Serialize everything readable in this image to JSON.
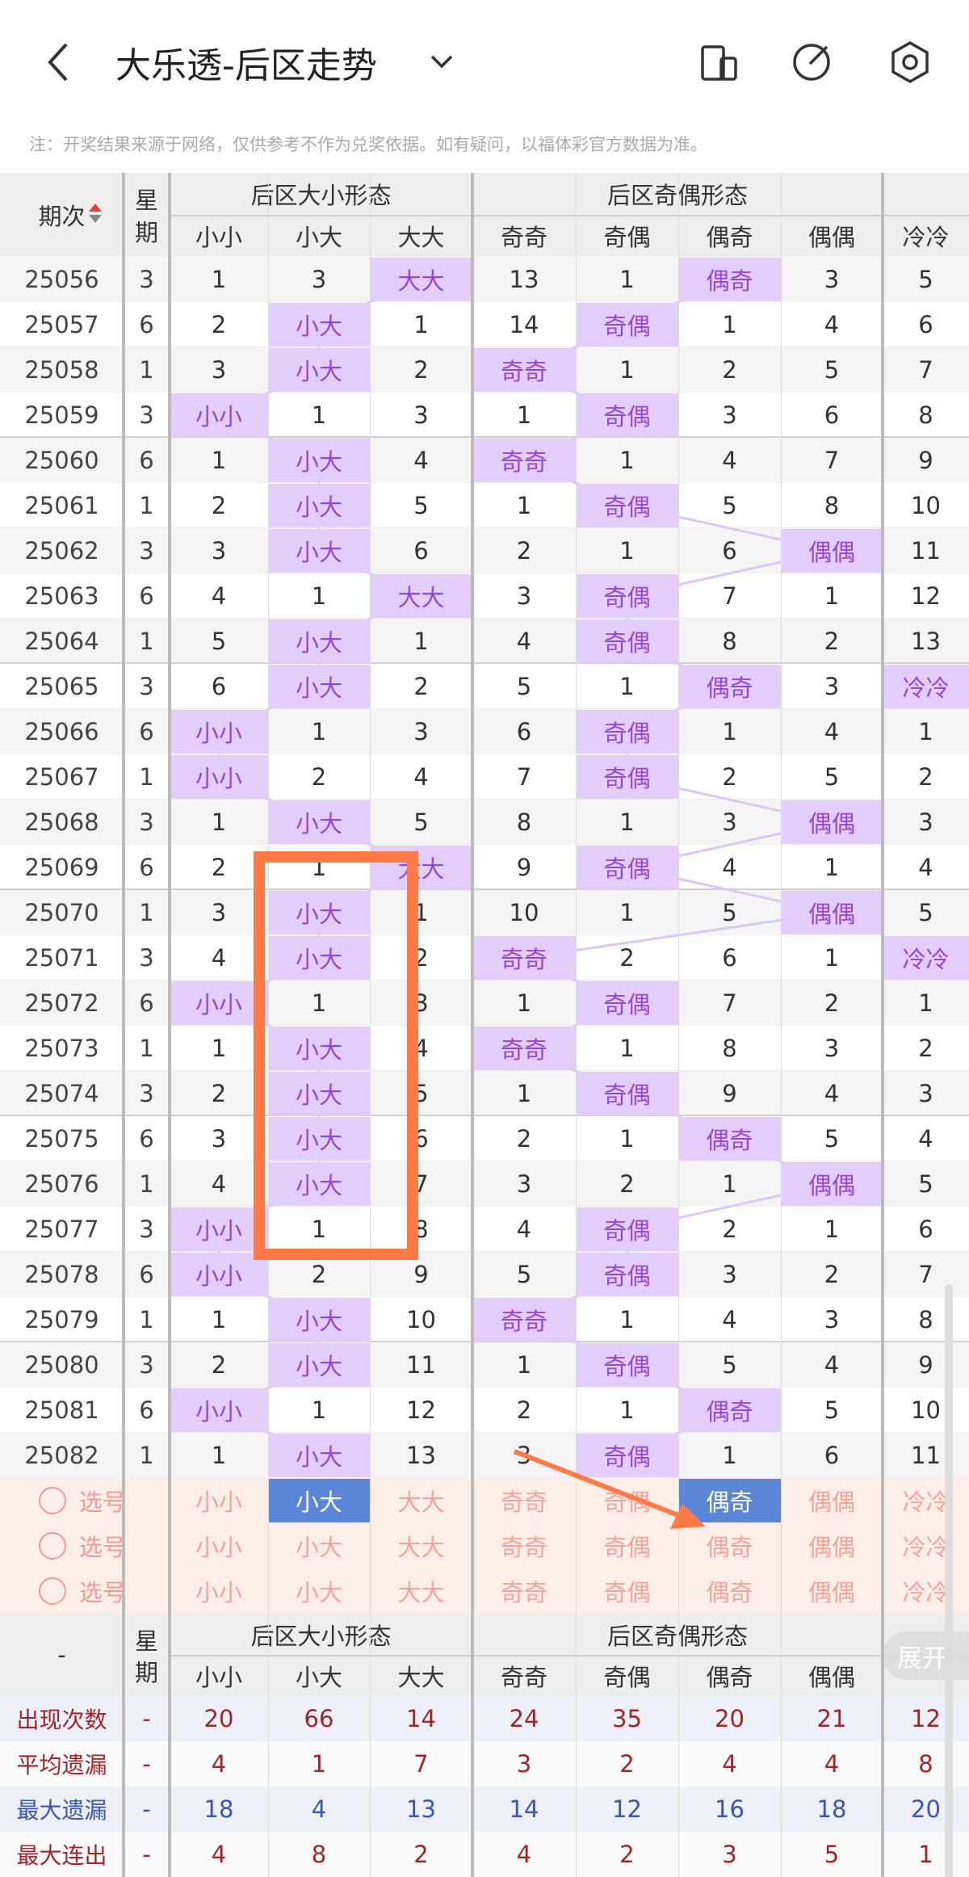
{
  "header": {
    "title": "大乐透-后区走势",
    "note": "注：开奖结果来源于网络，仅供参考不作为兑奖依据。如有疑问，以福体彩官方数据为准。"
  },
  "table": {
    "columns": {
      "period": "期次",
      "weekday": [
        "星",
        "期"
      ],
      "groups": [
        {
          "title": "后区大小形态",
          "cols": [
            "小小",
            "小大",
            "大大"
          ]
        },
        {
          "title": "后区奇偶形态",
          "cols": [
            "奇奇",
            "奇偶",
            "偶奇",
            "偶偶"
          ]
        },
        {
          "cols": [
            "冷冷"
          ]
        }
      ]
    },
    "rows": [
      {
        "period": "25056",
        "weekday": 3,
        "cells": [
          1,
          3,
          "大大",
          13,
          1,
          "偶奇",
          3,
          5
        ]
      },
      {
        "period": "25057",
        "weekday": 6,
        "cells": [
          2,
          "小大",
          1,
          14,
          "奇偶",
          1,
          4,
          6
        ]
      },
      {
        "period": "25058",
        "weekday": 1,
        "cells": [
          3,
          "小大",
          2,
          "奇奇",
          1,
          2,
          5,
          7
        ]
      },
      {
        "period": "25059",
        "weekday": 3,
        "cells": [
          "小小",
          1,
          3,
          1,
          "奇偶",
          3,
          6,
          8
        ]
      },
      {
        "period": "25060",
        "weekday": 6,
        "cells": [
          1,
          "小大",
          4,
          "奇奇",
          1,
          4,
          7,
          9
        ]
      },
      {
        "period": "25061",
        "weekday": 1,
        "cells": [
          2,
          "小大",
          5,
          1,
          "奇偶",
          5,
          8,
          10
        ]
      },
      {
        "period": "25062",
        "weekday": 3,
        "cells": [
          3,
          "小大",
          6,
          2,
          1,
          6,
          "偶偶",
          11
        ]
      },
      {
        "period": "25063",
        "weekday": 6,
        "cells": [
          4,
          1,
          "大大",
          3,
          "奇偶",
          7,
          1,
          12
        ]
      },
      {
        "period": "25064",
        "weekday": 1,
        "cells": [
          5,
          "小大",
          1,
          4,
          "奇偶",
          8,
          2,
          13
        ]
      },
      {
        "period": "25065",
        "weekday": 3,
        "cells": [
          6,
          "小大",
          2,
          5,
          1,
          "偶奇",
          3,
          "冷冷"
        ]
      },
      {
        "period": "25066",
        "weekday": 6,
        "cells": [
          "小小",
          1,
          3,
          6,
          "奇偶",
          1,
          4,
          1
        ]
      },
      {
        "period": "25067",
        "weekday": 1,
        "cells": [
          "小小",
          2,
          4,
          7,
          "奇偶",
          2,
          5,
          2
        ]
      },
      {
        "period": "25068",
        "weekday": 3,
        "cells": [
          1,
          "小大",
          5,
          8,
          1,
          3,
          "偶偶",
          3
        ]
      },
      {
        "period": "25069",
        "weekday": 6,
        "cells": [
          2,
          1,
          "大大",
          9,
          "奇偶",
          4,
          1,
          4
        ]
      },
      {
        "period": "25070",
        "weekday": 1,
        "cells": [
          3,
          "小大",
          1,
          10,
          1,
          5,
          "偶偶",
          5
        ]
      },
      {
        "period": "25071",
        "weekday": 3,
        "cells": [
          4,
          "小大",
          2,
          "奇奇",
          2,
          6,
          1,
          "冷冷"
        ]
      },
      {
        "period": "25072",
        "weekday": 6,
        "cells": [
          "小小",
          1,
          3,
          1,
          "奇偶",
          7,
          2,
          1
        ]
      },
      {
        "period": "25073",
        "weekday": 1,
        "cells": [
          1,
          "小大",
          4,
          "奇奇",
          1,
          8,
          3,
          2
        ]
      },
      {
        "period": "25074",
        "weekday": 3,
        "cells": [
          2,
          "小大",
          5,
          1,
          "奇偶",
          9,
          4,
          3
        ]
      },
      {
        "period": "25075",
        "weekday": 6,
        "cells": [
          3,
          "小大",
          6,
          2,
          1,
          "偶奇",
          5,
          4
        ]
      },
      {
        "period": "25076",
        "weekday": 1,
        "cells": [
          4,
          "小大",
          7,
          3,
          2,
          1,
          "偶偶",
          5
        ]
      },
      {
        "period": "25077",
        "weekday": 3,
        "cells": [
          "小小",
          1,
          8,
          4,
          "奇偶",
          2,
          1,
          6
        ]
      },
      {
        "period": "25078",
        "weekday": 6,
        "cells": [
          "小小",
          2,
          9,
          5,
          "奇偶",
          3,
          2,
          7
        ]
      },
      {
        "period": "25079",
        "weekday": 1,
        "cells": [
          1,
          "小大",
          10,
          "奇奇",
          1,
          4,
          3,
          8
        ]
      },
      {
        "period": "25080",
        "weekday": 3,
        "cells": [
          2,
          "小大",
          11,
          1,
          "奇偶",
          5,
          4,
          9
        ]
      },
      {
        "period": "25081",
        "weekday": 6,
        "cells": [
          "小小",
          1,
          12,
          2,
          1,
          "偶奇",
          5,
          10
        ]
      },
      {
        "period": "25082",
        "weekday": 1,
        "cells": [
          1,
          "小大",
          13,
          3,
          "奇偶",
          1,
          6,
          11
        ]
      }
    ],
    "select_rows": [
      {
        "label": "选号",
        "options": [
          {
            "text": "小小",
            "selected": false
          },
          {
            "text": "小大",
            "selected": true
          },
          {
            "text": "大大",
            "selected": false
          },
          {
            "text": "奇奇",
            "selected": false
          },
          {
            "text": "奇偶",
            "selected": false
          },
          {
            "text": "偶奇",
            "selected": true
          },
          {
            "text": "偶偶",
            "selected": false
          },
          {
            "text": "冷冷",
            "selected": false
          }
        ]
      },
      {
        "label": "选号",
        "options": [
          {
            "text": "小小",
            "selected": false
          },
          {
            "text": "小大",
            "selected": false
          },
          {
            "text": "大大",
            "selected": false
          },
          {
            "text": "奇奇",
            "selected": false
          },
          {
            "text": "奇偶",
            "selected": false
          },
          {
            "text": "偶奇",
            "selected": false
          },
          {
            "text": "偶偶",
            "selected": false
          },
          {
            "text": "冷冷",
            "selected": false
          }
        ]
      },
      {
        "label": "选号",
        "options": [
          {
            "text": "小小",
            "selected": false
          },
          {
            "text": "小大",
            "selected": false
          },
          {
            "text": "大大",
            "selected": false
          },
          {
            "text": "奇奇",
            "selected": false
          },
          {
            "text": "奇偶",
            "selected": false
          },
          {
            "text": "偶奇",
            "selected": false
          },
          {
            "text": "偶偶",
            "selected": false
          },
          {
            "text": "冷冷",
            "selected": false
          }
        ]
      }
    ],
    "bottom_header": {
      "label": "-",
      "weekday": [
        "星",
        "期"
      ],
      "groups": [
        {
          "title": "后区大小形态",
          "cols": [
            "小小",
            "小大",
            "大大"
          ]
        },
        {
          "title": "后区奇偶形态",
          "cols": [
            "奇奇",
            "奇偶",
            "偶奇",
            "偶偶"
          ]
        }
      ],
      "expand_button": "展开"
    },
    "stats": [
      {
        "label": "出现次数",
        "weekday": "-",
        "values": [
          20,
          66,
          14,
          24,
          35,
          20,
          21,
          12
        ],
        "color": "#a3232b"
      },
      {
        "label": "平均遗漏",
        "weekday": "-",
        "values": [
          4,
          1,
          7,
          3,
          2,
          4,
          4,
          8
        ],
        "color": "#a3232b"
      },
      {
        "label": "最大遗漏",
        "weekday": "-",
        "values": [
          18,
          4,
          13,
          14,
          12,
          16,
          18,
          20
        ],
        "color": "#3a55b4"
      },
      {
        "label": "最大连出",
        "weekday": "-",
        "values": [
          4,
          8,
          2,
          4,
          2,
          3,
          5,
          1
        ],
        "color": "#a3232b"
      }
    ]
  }
}
